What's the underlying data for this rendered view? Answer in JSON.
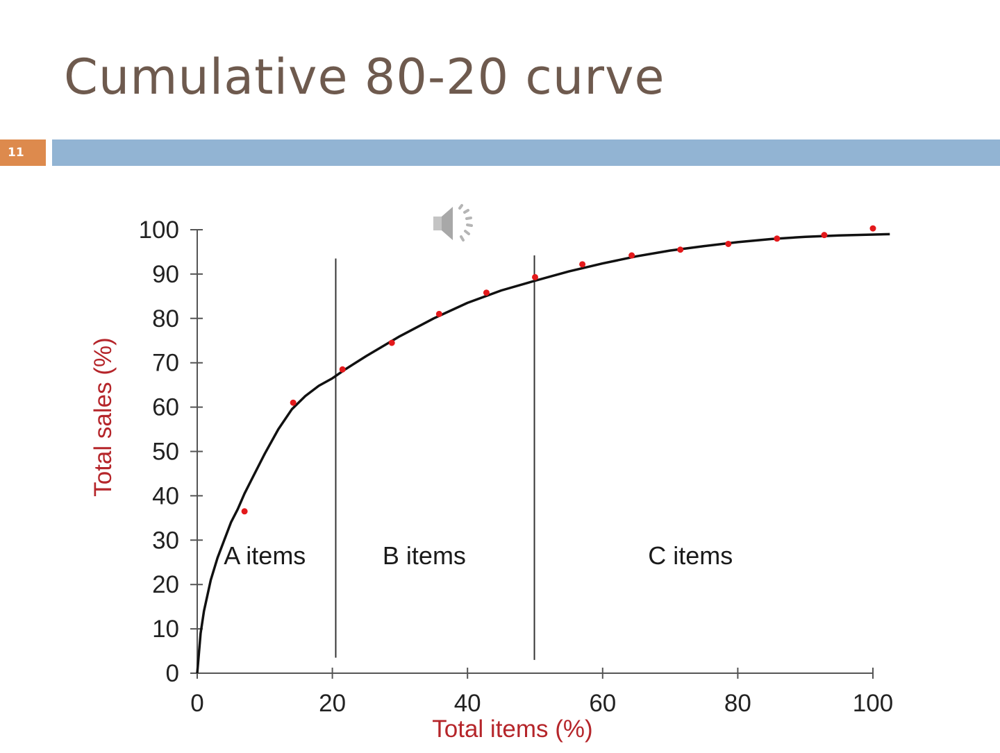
{
  "slide": {
    "title": "Cumulative 80-20 curve",
    "number": "11",
    "colors": {
      "title": "#6e5a4e",
      "number_box": "#dd8a4d",
      "bar": "#92b4d3"
    }
  },
  "media": {
    "icon": "speaker-icon"
  },
  "chart_data": {
    "type": "line",
    "title": "",
    "xlabel": "Total items (%)",
    "ylabel": "Total sales (%)",
    "xlim": [
      0,
      100
    ],
    "ylim": [
      0,
      100
    ],
    "x_ticks": [
      "0",
      "20",
      "40",
      "60",
      "80",
      "100"
    ],
    "y_ticks": [
      "0",
      "10",
      "20",
      "30",
      "40",
      "50",
      "60",
      "70",
      "80",
      "90",
      "100"
    ],
    "grid": false,
    "series": [
      {
        "kind": "points",
        "color": "#e3191b",
        "points": [
          [
            7,
            36.5
          ],
          [
            14.2,
            61
          ],
          [
            21.5,
            68.5
          ],
          [
            28.8,
            74.5
          ],
          [
            35.8,
            81
          ],
          [
            42.8,
            85.8
          ],
          [
            50,
            89.3
          ],
          [
            57,
            92.2
          ],
          [
            64.3,
            94.2
          ],
          [
            71.5,
            95.5
          ],
          [
            78.6,
            96.8
          ],
          [
            85.8,
            98
          ],
          [
            92.8,
            98.8
          ],
          [
            100,
            100.3
          ]
        ]
      },
      {
        "kind": "curve",
        "color": "#111111",
        "points": [
          [
            0,
            0
          ],
          [
            0.5,
            9
          ],
          [
            1,
            14
          ],
          [
            2,
            21
          ],
          [
            3,
            26
          ],
          [
            4,
            30
          ],
          [
            5,
            34
          ],
          [
            6,
            37
          ],
          [
            7,
            40.5
          ],
          [
            8,
            43.5
          ],
          [
            10,
            49.5
          ],
          [
            12,
            55
          ],
          [
            14,
            59.5
          ],
          [
            16,
            62.5
          ],
          [
            18,
            64.8
          ],
          [
            20,
            66.5
          ],
          [
            22,
            68.6
          ],
          [
            25,
            71.5
          ],
          [
            30,
            76
          ],
          [
            35,
            80
          ],
          [
            40,
            83.5
          ],
          [
            45,
            86.3
          ],
          [
            50,
            88.5
          ],
          [
            55,
            90.6
          ],
          [
            60,
            92.4
          ],
          [
            65,
            94
          ],
          [
            70,
            95.3
          ],
          [
            75,
            96.3
          ],
          [
            80,
            97.2
          ],
          [
            85,
            97.9
          ],
          [
            90,
            98.4
          ],
          [
            95,
            98.7
          ],
          [
            100,
            98.9
          ],
          [
            102.5,
            99
          ]
        ]
      }
    ],
    "dividers": [
      {
        "x": 20.5,
        "y_range": [
          3.5,
          93.5
        ]
      },
      {
        "x": 49.9,
        "y_range": [
          3,
          94.2
        ]
      }
    ],
    "annotations": [
      {
        "text": "A items",
        "x": 10,
        "y": 24.6
      },
      {
        "text": "B items",
        "x": 33.6,
        "y": 24.6
      },
      {
        "text": "C items",
        "x": 73,
        "y": 24.6
      }
    ]
  }
}
